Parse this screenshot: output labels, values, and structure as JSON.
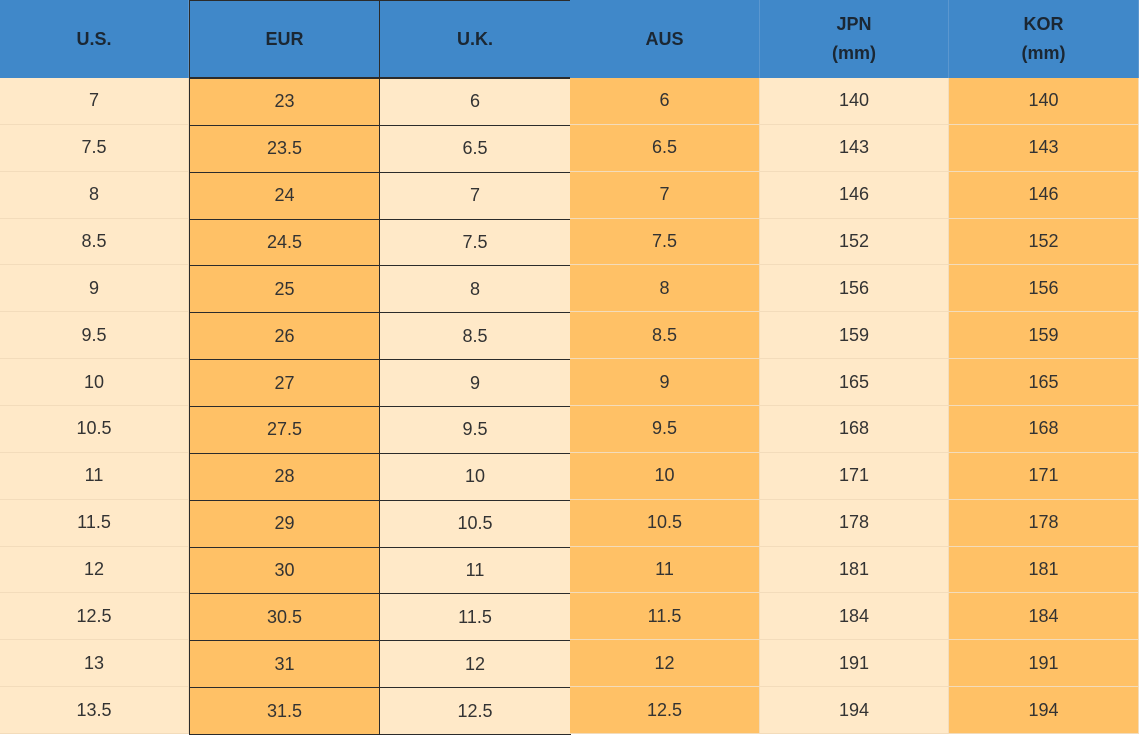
{
  "table": {
    "header": [
      [
        "U.S."
      ],
      [
        "EUR"
      ],
      [
        "U.K."
      ],
      [
        "AUS"
      ],
      [
        "JPN",
        "(mm)"
      ],
      [
        "KOR",
        "(mm)"
      ]
    ],
    "rows": [
      [
        7,
        23,
        6,
        6,
        140,
        140
      ],
      [
        7.5,
        23.5,
        6.5,
        6.5,
        143,
        143
      ],
      [
        8,
        24,
        7,
        7,
        146,
        146
      ],
      [
        8.5,
        24.5,
        7.5,
        7.5,
        152,
        152
      ],
      [
        9,
        25,
        8,
        8,
        156,
        156
      ],
      [
        9.5,
        26,
        8.5,
        8.5,
        159,
        159
      ],
      [
        10,
        27,
        9,
        9,
        165,
        165
      ],
      [
        10.5,
        27.5,
        9.5,
        9.5,
        168,
        168
      ],
      [
        11,
        28,
        10,
        10,
        171,
        171
      ],
      [
        11.5,
        29,
        10.5,
        10.5,
        178,
        178
      ],
      [
        12,
        30,
        11,
        11,
        181,
        181
      ],
      [
        12.5,
        30.5,
        11.5,
        11.5,
        184,
        184
      ],
      [
        13,
        31,
        12,
        12,
        191,
        191
      ],
      [
        13.5,
        31.5,
        12.5,
        12.5,
        194,
        194
      ]
    ]
  }
}
